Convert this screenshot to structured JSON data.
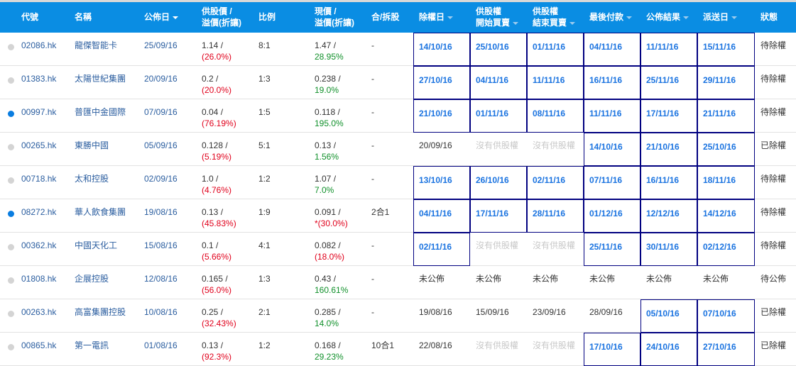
{
  "header": {
    "code": "代號",
    "name": "名稱",
    "announce": "公佈日",
    "offer_line1": "供股價 /",
    "offer_line2": "溢價(折讓)",
    "ratio": "比例",
    "price_line1": "現價 /",
    "price_line2": "溢價(折讓)",
    "merge": "合/拆股",
    "ex_date": "除權日",
    "start_line1": "供股權",
    "start_line2": "開始買賣",
    "end_line1": "供股權",
    "end_line2": "結束買賣",
    "payment": "最後付款",
    "result": "公佈結果",
    "dispatch": "派送日",
    "status": "狀態"
  },
  "colors": {
    "header_bg": "#0a8de3",
    "highlight_border": "#000080",
    "highlight_text": "#1a73e0",
    "negative": "#e0001b",
    "positive": "#10902a"
  },
  "rows": [
    {
      "active": false,
      "code": "02086.hk",
      "name": "龍傑智能卡",
      "announce": "25/09/16",
      "offer": "1.14 /",
      "offer_pct": "(26.0%)",
      "offer_sign": "neg",
      "ratio": "8:1",
      "price": "1.47 /",
      "price_pct": "28.95%",
      "price_sign": "pos",
      "merge": "-",
      "dates": [
        {
          "text": "14/10/16",
          "style": "b"
        },
        {
          "text": "25/10/16",
          "style": "b"
        },
        {
          "text": "01/11/16",
          "style": "b"
        },
        {
          "text": "04/11/16",
          "style": "b"
        },
        {
          "text": "11/11/16",
          "style": "b"
        },
        {
          "text": "15/11/16",
          "style": "b"
        }
      ],
      "status": "待除權"
    },
    {
      "active": false,
      "code": "01383.hk",
      "name": "太陽世紀集團",
      "announce": "20/09/16",
      "offer": "0.2 /",
      "offer_pct": "(20.0%)",
      "offer_sign": "neg",
      "ratio": "1:3",
      "price": "0.238 /",
      "price_pct": "19.0%",
      "price_sign": "pos",
      "merge": "-",
      "dates": [
        {
          "text": "27/10/16",
          "style": "b"
        },
        {
          "text": "04/11/16",
          "style": "b"
        },
        {
          "text": "11/11/16",
          "style": "b"
        },
        {
          "text": "16/11/16",
          "style": "b"
        },
        {
          "text": "25/11/16",
          "style": "b"
        },
        {
          "text": "29/11/16",
          "style": "b"
        }
      ],
      "status": "待除權"
    },
    {
      "active": true,
      "code": "00997.hk",
      "name": "普匯中金國際",
      "announce": "07/09/16",
      "offer": "0.04 /",
      "offer_pct": "(76.19%)",
      "offer_sign": "neg",
      "ratio": "1:5",
      "price": "0.118 /",
      "price_pct": "195.0%",
      "price_sign": "pos",
      "merge": "-",
      "dates": [
        {
          "text": "21/10/16",
          "style": "b"
        },
        {
          "text": "01/11/16",
          "style": "b"
        },
        {
          "text": "08/11/16",
          "style": "b"
        },
        {
          "text": "11/11/16",
          "style": "b"
        },
        {
          "text": "17/11/16",
          "style": "b"
        },
        {
          "text": "21/11/16",
          "style": "b"
        }
      ],
      "status": "待除權"
    },
    {
      "active": false,
      "code": "00265.hk",
      "name": "東勝中國",
      "announce": "05/09/16",
      "offer": "0.128 /",
      "offer_pct": "(5.19%)",
      "offer_sign": "neg",
      "ratio": "5:1",
      "price": "0.13 /",
      "price_pct": "1.56%",
      "price_sign": "pos",
      "merge": "-",
      "dates": [
        {
          "text": "20/09/16",
          "style": "p"
        },
        {
          "text": "沒有供股權",
          "style": "g"
        },
        {
          "text": "沒有供股權",
          "style": "g"
        },
        {
          "text": "14/10/16",
          "style": "b"
        },
        {
          "text": "21/10/16",
          "style": "b"
        },
        {
          "text": "25/10/16",
          "style": "b"
        }
      ],
      "status": "已除權"
    },
    {
      "active": false,
      "code": "00718.hk",
      "name": "太和控股",
      "announce": "02/09/16",
      "offer": "1.0 /",
      "offer_pct": "(4.76%)",
      "offer_sign": "neg",
      "ratio": "1:2",
      "price": "1.07 /",
      "price_pct": "7.0%",
      "price_sign": "pos",
      "merge": "-",
      "dates": [
        {
          "text": "13/10/16",
          "style": "b"
        },
        {
          "text": "26/10/16",
          "style": "b"
        },
        {
          "text": "02/11/16",
          "style": "b"
        },
        {
          "text": "07/11/16",
          "style": "b"
        },
        {
          "text": "16/11/16",
          "style": "b"
        },
        {
          "text": "18/11/16",
          "style": "b"
        }
      ],
      "status": "待除權"
    },
    {
      "active": true,
      "code": "08272.hk",
      "name": "華人飲食集團",
      "announce": "19/08/16",
      "offer": "0.13 /",
      "offer_pct": "(45.83%)",
      "offer_sign": "neg",
      "ratio": "1:9",
      "price": "0.091 /",
      "price_pct": "*(30.0%)",
      "price_sign": "neg",
      "merge": "2合1",
      "dates": [
        {
          "text": "04/11/16",
          "style": "b"
        },
        {
          "text": "17/11/16",
          "style": "b"
        },
        {
          "text": "28/11/16",
          "style": "b"
        },
        {
          "text": "01/12/16",
          "style": "b"
        },
        {
          "text": "12/12/16",
          "style": "b"
        },
        {
          "text": "14/12/16",
          "style": "b"
        }
      ],
      "status": "待除權"
    },
    {
      "active": false,
      "code": "00362.hk",
      "name": "中國天化工",
      "announce": "15/08/16",
      "offer": "0.1 /",
      "offer_pct": "(5.66%)",
      "offer_sign": "neg",
      "ratio": "4:1",
      "price": "0.082 /",
      "price_pct": "(18.0%)",
      "price_sign": "neg",
      "merge": "-",
      "dates": [
        {
          "text": "02/11/16",
          "style": "b"
        },
        {
          "text": "沒有供股權",
          "style": "g"
        },
        {
          "text": "沒有供股權",
          "style": "g"
        },
        {
          "text": "25/11/16",
          "style": "b"
        },
        {
          "text": "30/11/16",
          "style": "b"
        },
        {
          "text": "02/12/16",
          "style": "b"
        }
      ],
      "status": "待除權"
    },
    {
      "active": false,
      "code": "01808.hk",
      "name": "企展控股",
      "announce": "12/08/16",
      "offer": "0.165 /",
      "offer_pct": "(56.0%)",
      "offer_sign": "neg",
      "ratio": "1:3",
      "price": "0.43 /",
      "price_pct": "160.61%",
      "price_sign": "pos",
      "merge": "-",
      "dates": [
        {
          "text": "未公佈",
          "style": "p"
        },
        {
          "text": "未公佈",
          "style": "p"
        },
        {
          "text": "未公佈",
          "style": "p"
        },
        {
          "text": "未公佈",
          "style": "p"
        },
        {
          "text": "未公佈",
          "style": "p"
        },
        {
          "text": "未公佈",
          "style": "p"
        }
      ],
      "status": "待公佈"
    },
    {
      "active": false,
      "code": "00263.hk",
      "name": "高富集團控股",
      "announce": "10/08/16",
      "offer": "0.25 /",
      "offer_pct": "(32.43%)",
      "offer_sign": "neg",
      "ratio": "2:1",
      "price": "0.285 /",
      "price_pct": "14.0%",
      "price_sign": "pos",
      "merge": "-",
      "dates": [
        {
          "text": "19/08/16",
          "style": "p"
        },
        {
          "text": "15/09/16",
          "style": "p"
        },
        {
          "text": "23/09/16",
          "style": "p"
        },
        {
          "text": "28/09/16",
          "style": "p"
        },
        {
          "text": "05/10/16",
          "style": "b"
        },
        {
          "text": "07/10/16",
          "style": "b"
        }
      ],
      "status": "已除權"
    },
    {
      "active": false,
      "code": "00865.hk",
      "name": "第一電訊",
      "announce": "01/08/16",
      "offer": "0.13 /",
      "offer_pct": "(92.3%)",
      "offer_sign": "neg",
      "ratio": "1:2",
      "price": "0.168 /",
      "price_pct": "29.23%",
      "price_sign": "pos",
      "merge": "10合1",
      "dates": [
        {
          "text": "22/08/16",
          "style": "p"
        },
        {
          "text": "沒有供股權",
          "style": "g"
        },
        {
          "text": "沒有供股權",
          "style": "g"
        },
        {
          "text": "17/10/16",
          "style": "b"
        },
        {
          "text": "24/10/16",
          "style": "b"
        },
        {
          "text": "27/10/16",
          "style": "b"
        }
      ],
      "status": "已除權"
    }
  ]
}
